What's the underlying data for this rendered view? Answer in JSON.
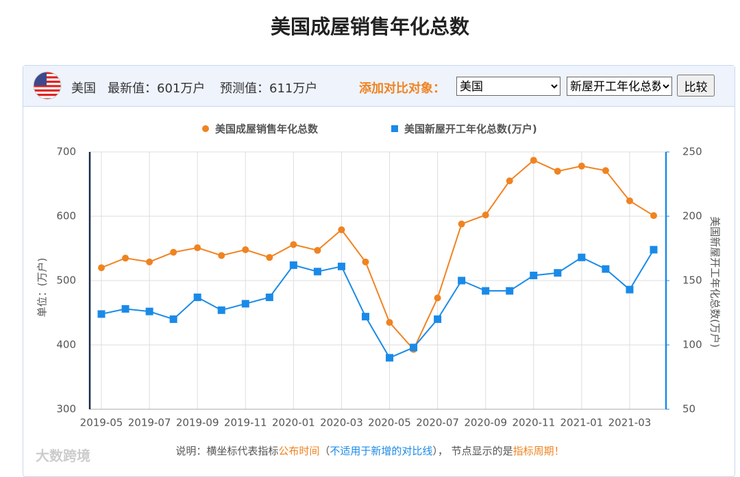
{
  "title": "美国成屋销售年化总数",
  "header": {
    "country": "美国",
    "latest": "最新值：601万户",
    "forecast": "预测值：611万户",
    "compare_label": "添加对比对象：",
    "country_select": "美国",
    "indicator_select": "新屋开工年化总数",
    "button": "比较"
  },
  "chart_data": {
    "type": "line",
    "categories": [
      "2019-05",
      null,
      "2019-07",
      null,
      "2019-09",
      null,
      "2019-11",
      null,
      "2020-01",
      null,
      "2020-03",
      null,
      "2020-05",
      null,
      "2020-07",
      null,
      "2020-09",
      null,
      "2020-11",
      null,
      "2021-01",
      null,
      "2021-03",
      null
    ],
    "series": [
      {
        "name": "美国成屋销售年化总数",
        "color": "#f08321",
        "marker": "circle",
        "values": [
          520,
          535,
          529,
          544,
          551,
          539,
          548,
          536,
          556,
          547,
          579,
          529,
          435,
          393,
          473,
          588,
          602,
          655,
          687,
          670,
          678,
          671,
          624,
          601
        ]
      },
      {
        "name": "美国新屋开工年化总数(万户)",
        "color": "#1a8ae8",
        "marker": "square",
        "axis": "y2",
        "values": [
          124,
          128,
          126,
          120,
          137,
          127,
          132,
          137,
          162,
          157,
          161,
          122,
          90,
          98,
          120,
          150,
          142,
          142,
          154,
          156,
          168,
          159,
          143,
          174
        ]
      }
    ],
    "ylabel": "单位：(万户)",
    "y2label": "美国新屋开工年化总数(万户)",
    "ylim": [
      300,
      700
    ],
    "yticks": [
      300,
      400,
      500,
      600,
      700
    ],
    "y2lim": [
      50,
      250
    ],
    "y2ticks": [
      50,
      100,
      150,
      200,
      250
    ],
    "grid": true
  },
  "footnote": {
    "parts": [
      {
        "text": "说明：横坐标代表指标",
        "color": "#555555"
      },
      {
        "text": "公布时间",
        "color": "#f08321"
      },
      {
        "text": "（",
        "color": "#555555"
      },
      {
        "text": "不适用于新增的对比线",
        "color": "#1a8ae8"
      },
      {
        "text": "）， 节点显示的是",
        "color": "#555555"
      },
      {
        "text": "指标周期！",
        "color": "#f08321"
      }
    ]
  },
  "watermark": "大数跨境"
}
